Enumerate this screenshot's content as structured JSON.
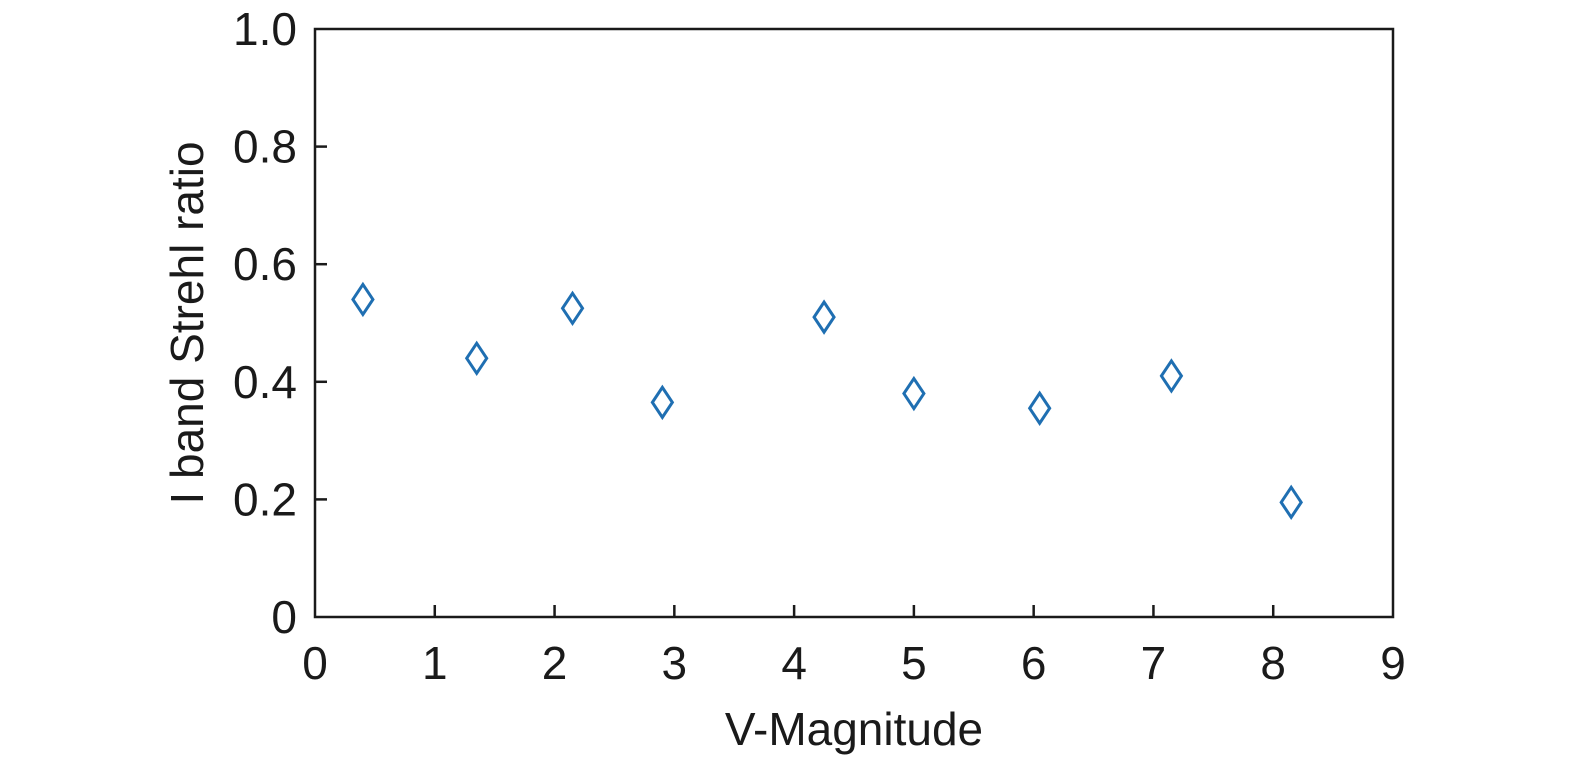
{
  "chart_data": {
    "type": "scatter",
    "title": "",
    "xlabel": "V-Magnitude",
    "ylabel": "I band Strehl ratio",
    "xlim": [
      0,
      9
    ],
    "ylim": [
      0,
      1.0
    ],
    "xticks": [
      0,
      1,
      2,
      3,
      4,
      5,
      6,
      7,
      8,
      9
    ],
    "xtick_labels": [
      "0",
      "1",
      "2",
      "3",
      "4",
      "5",
      "6",
      "7",
      "8",
      "9"
    ],
    "yticks": [
      0,
      0.2,
      0.4,
      0.6,
      0.8,
      1.0
    ],
    "ytick_labels": [
      "0",
      "0.2",
      "0.4",
      "0.6",
      "0.8",
      "1.0"
    ],
    "grid": false,
    "marker": "open-diamond",
    "marker_color": "#1f6fb2",
    "series": [
      {
        "x": [
          0.4,
          1.35,
          2.15,
          2.9,
          4.25,
          5.0,
          6.05,
          7.15,
          8.15
        ],
        "y": [
          0.54,
          0.44,
          0.525,
          0.365,
          0.51,
          0.38,
          0.355,
          0.41,
          0.195
        ]
      }
    ]
  }
}
